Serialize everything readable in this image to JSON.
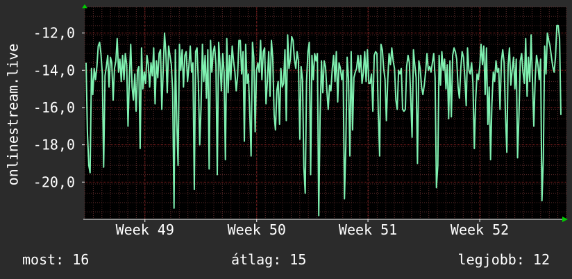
{
  "chart_data": {
    "type": "line",
    "ylabel": "onlinestream.live",
    "ylim": [
      -22,
      -10.6
    ],
    "y_ticks": [
      -12,
      -14,
      -16,
      -18,
      -20
    ],
    "y_tick_labels": [
      "-12,0",
      "-14,0",
      "-16,0",
      "-18,0",
      "-20,0"
    ],
    "x_ticks": [
      {
        "label": "Week 49",
        "pos": 0.125
      },
      {
        "label": "Week 50",
        "pos": 0.357
      },
      {
        "label": "Week 51",
        "pos": 0.588
      },
      {
        "label": "Week 52",
        "pos": 0.82
      }
    ],
    "grid": true,
    "series": [
      {
        "color": "#7ff0b0",
        "values": [
          -13.6,
          -17.3,
          -19.1,
          -19.5,
          -13.9,
          -15.3,
          -13.9,
          -14.5,
          -13.8,
          -12.7,
          -12.5,
          -13.1,
          -14.2,
          -19.2,
          -14.3,
          -13.8,
          -13.2,
          -14.9,
          -13.3,
          -13.6,
          -15.6,
          -13.9,
          -13.5,
          -12.3,
          -14.1,
          -13.4,
          -14.6,
          -13.2,
          -14.5,
          -13.1,
          -13.7,
          -17.0,
          -14.4,
          -12.6,
          -14.9,
          -15.6,
          -14.2,
          -16.2,
          -14.0,
          -13.8,
          -18.2,
          -12.8,
          -15.0,
          -14.1,
          -14.7,
          -13.2,
          -13.7,
          -14.9,
          -13.6,
          -14.3,
          -12.8,
          -15.8,
          -13.5,
          -14.4,
          -13.1,
          -12.9,
          -16.1,
          -14.0,
          -12.0,
          -13.1,
          -15.2,
          -12.7,
          -13.2,
          -13.7,
          -15.1,
          -21.4,
          -12.9,
          -16.7,
          -19.1,
          -12.6,
          -14.0,
          -12.9,
          -14.9,
          -13.2,
          -13.0,
          -14.6,
          -13.8,
          -12.7,
          -14.1,
          -13.6,
          -20.4,
          -13.0,
          -12.8,
          -14.6,
          -18.0,
          -16.0,
          -12.6,
          -14.6,
          -13.2,
          -15.5,
          -12.9,
          -19.3,
          -12.4,
          -14.1,
          -13.0,
          -12.7,
          -13.7,
          -19.6,
          -12.5,
          -13.6,
          -15.1,
          -13.1,
          -14.1,
          -18.8,
          -12.3,
          -15.2,
          -13.2,
          -14.5,
          -12.7,
          -13.5,
          -14.1,
          -15.1,
          -14.3,
          -12.4,
          -12.4,
          -14.2,
          -13.0,
          -17.8,
          -12.6,
          -14.7,
          -14.2,
          -16.3,
          -18.6,
          -12.5,
          -13.3,
          -17.3,
          -14.0,
          -13.6,
          -14.1,
          -12.4,
          -14.5,
          -13.0,
          -12.8,
          -15.8,
          -14.6,
          -13.0,
          -15.4,
          -12.4,
          -13.3,
          -16.4,
          -17.2,
          -15.1,
          -14.6,
          -16.9,
          -13.9,
          -14.9,
          -14.7,
          -12.9,
          -16.7,
          -12.1,
          -13.9,
          -13.4,
          -12.2,
          -12.4,
          -13.4,
          -13.9,
          -13.0,
          -13.5,
          -17.7,
          -13.8,
          -14.5,
          -19.2,
          -20.6,
          -14.6,
          -13.0,
          -12.5,
          -19.6,
          -13.2,
          -14.5,
          -13.1,
          -13.5,
          -13.1,
          -21.8,
          -16.5,
          -13.5,
          -15.2,
          -13.5,
          -13.8,
          -15.1,
          -16.1,
          -14.8,
          -15.1,
          -13.9,
          -13.2,
          -14.6,
          -13.0,
          -15.7,
          -13.6,
          -13.9,
          -14.5,
          -14.0,
          -20.9,
          -18.0,
          -13.3,
          -14.5,
          -18.6,
          -13.0,
          -17.2,
          -14.4,
          -14.1,
          -13.9,
          -13.2,
          -14.1,
          -13.2,
          -14.7,
          -14.1,
          -13.0,
          -14.6,
          -12.9,
          -14.7,
          -14.7,
          -14.2,
          -16.2,
          -13.2,
          -13.0,
          -13.1,
          -16.2,
          -18.6,
          -12.6,
          -12.9,
          -13.9,
          -14.5,
          -16.7,
          -14.5,
          -13.1,
          -13.7,
          -12.8,
          -13.5,
          -13.9,
          -15.6,
          -16.1,
          -14.0,
          -14.2,
          -13.9,
          -16.1,
          -16.2,
          -16.1,
          -13.8,
          -13.2,
          -13.6,
          -15.5,
          -17.6,
          -12.9,
          -13.7,
          -14.4,
          -19.0,
          -13.5,
          -13.9,
          -14.9,
          -15.3,
          -14.8,
          -14.1,
          -13.1,
          -14.0,
          -13.8,
          -14.1,
          -13.6,
          -13.1,
          -14.4,
          -20.3,
          -19.1,
          -13.2,
          -14.8,
          -13.0,
          -14.0,
          -13.4,
          -15.0,
          -13.7,
          -16.6,
          -13.5,
          -16.5,
          -13.2,
          -12.8,
          -13.0,
          -13.4,
          -14.9,
          -15.5,
          -13.9,
          -13.0,
          -13.3,
          -14.4,
          -15.9,
          -12.8,
          -14.0,
          -14.2,
          -13.6,
          -14.7,
          -18.2,
          -15.6,
          -14.2,
          -14.5,
          -13.8,
          -12.6,
          -13.7,
          -12.7,
          -15.3,
          -12.8,
          -16.9,
          -14.9,
          -18.8,
          -15.8,
          -14.1,
          -14.6,
          -13.5,
          -14.1,
          -13.9,
          -16.1,
          -13.5,
          -12.9,
          -13.6,
          -16.3,
          -18.4,
          -13.7,
          -12.8,
          -14.8,
          -14.0,
          -13.3,
          -15.0,
          -13.4,
          -18.7,
          -16.4,
          -13.5,
          -13.1,
          -14.1,
          -14.7,
          -12.3,
          -15.4,
          -13.3,
          -14.6,
          -12.1,
          -14.6,
          -17.0,
          -14.4,
          -13.2,
          -13.7,
          -14.5,
          -13.4,
          -21.0,
          -18.8,
          -12.7,
          -14.2,
          -12.0,
          -12.4,
          -12.7,
          -13.3,
          -13.8,
          -14.1,
          -13.3,
          -11.6,
          -11.6,
          -12.3,
          -16.4
        ]
      }
    ]
  },
  "stats": {
    "now": "most: 16",
    "avg": "átlag: 15",
    "best": "legjobb: 12"
  }
}
